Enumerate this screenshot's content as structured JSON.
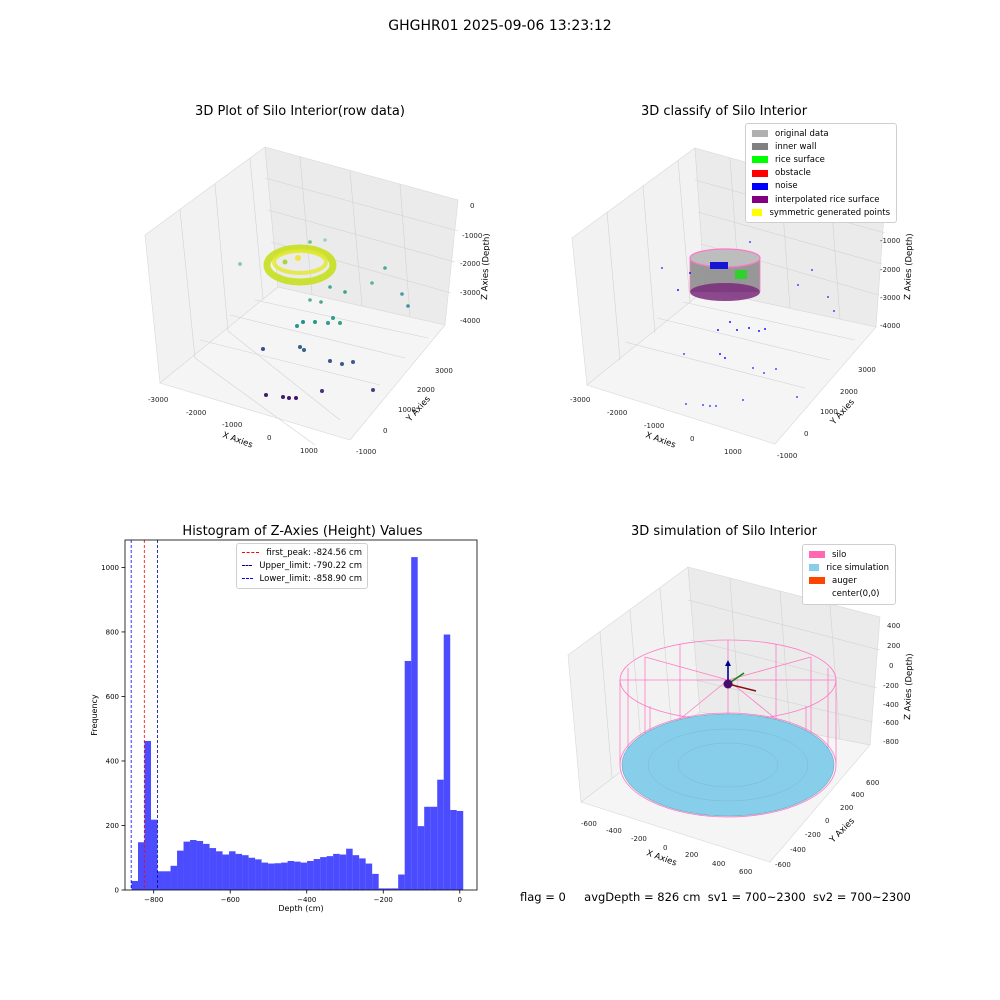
{
  "suptitle": "GHGHR01 2025-09-06 13:23:12",
  "panels": {
    "raw": {
      "title": "3D Plot of Silo Interior(row data)",
      "xlabel": "X Axies",
      "ylabel": "Y Axies",
      "zlabel": "Z Axies (Depth)",
      "xticks": [
        "-3000",
        "-2000",
        "-1000",
        "0",
        "1000"
      ],
      "yticks": [
        "-1000",
        "0",
        "1000",
        "2000",
        "3000"
      ],
      "zticks": [
        "0",
        "-1000",
        "-2000",
        "-3000",
        "-4000"
      ]
    },
    "classify": {
      "title": "3D classify of Silo Interior",
      "xlabel": "X Axies",
      "ylabel": "Y Axies",
      "zlabel": "Z Axies (Depth)",
      "xticks": [
        "-3000",
        "-2000",
        "-1000",
        "0",
        "1000"
      ],
      "yticks": [
        "-1000",
        "0",
        "1000",
        "2000",
        "3000"
      ],
      "zticks": [
        "0",
        "-1000",
        "-2000",
        "-3000",
        "-4000"
      ],
      "legend": [
        {
          "label": "original data",
          "color": "#b0b0b0"
        },
        {
          "label": "inner wall",
          "color": "#808080"
        },
        {
          "label": "rice surface",
          "color": "#00ff00"
        },
        {
          "label": "obstacle",
          "color": "#ff0000"
        },
        {
          "label": "noise",
          "color": "#0000ff"
        },
        {
          "label": "interpolated rice surface",
          "color": "#800080"
        },
        {
          "label": "symmetric generated points",
          "color": "#ffff00"
        }
      ]
    },
    "simulation": {
      "title": "3D simulation of Silo Interior",
      "xlabel": "X Axies",
      "ylabel": "Y Axies",
      "zlabel": "Z Axies (Depth)",
      "xticks": [
        "-600",
        "-400",
        "-200",
        "0",
        "200",
        "400",
        "600"
      ],
      "yticks": [
        "-600",
        "-400",
        "-200",
        "0",
        "200",
        "400",
        "600"
      ],
      "zticks": [
        "400",
        "200",
        "0",
        "-200",
        "-400",
        "-600",
        "-800"
      ],
      "legend": [
        {
          "label": "silo",
          "color": "#ff69b4"
        },
        {
          "label": "rice simulation",
          "color": "#87ceeb"
        },
        {
          "label": "auger",
          "color": "#ff4500"
        },
        {
          "label": "center(0,0)",
          "color": "#ffffff"
        }
      ]
    }
  },
  "footer": {
    "flag": "flag = 0",
    "avg": "avgDepth = 826 cm",
    "sv1": "sv1 = 700~2300",
    "sv2": "sv2 = 700~2300"
  },
  "chart_data": [
    {
      "type": "bar",
      "title": "Histogram of Z-Axies (Height) Values",
      "xlabel": "Depth (cm)",
      "ylabel": "Frequency",
      "xlim": [
        -875,
        45
      ],
      "ylim": [
        0,
        1085
      ],
      "xticks": [
        -800,
        -600,
        -400,
        -200,
        0
      ],
      "yticks": [
        0,
        200,
        400,
        600,
        800,
        1000
      ],
      "bin_width": 17,
      "bins_left": [
        -858,
        -841,
        -824,
        -807,
        -790,
        -773,
        -756,
        -739,
        -722,
        -705,
        -688,
        -671,
        -654,
        -637,
        -620,
        -603,
        -586,
        -569,
        -552,
        -535,
        -518,
        -501,
        -484,
        -467,
        -450,
        -433,
        -416,
        -399,
        -382,
        -365,
        -348,
        -331,
        -314,
        -297,
        -280,
        -263,
        -246,
        -229,
        -212,
        -195,
        -178,
        -161,
        -144,
        -127,
        -110,
        -93,
        -76,
        -59,
        -42,
        -25,
        -8
      ],
      "values": [
        28,
        148,
        462,
        218,
        58,
        58,
        75,
        122,
        150,
        155,
        152,
        143,
        130,
        120,
        110,
        120,
        112,
        108,
        100,
        95,
        85,
        82,
        83,
        85,
        90,
        88,
        85,
        90,
        96,
        102,
        105,
        112,
        110,
        128,
        108,
        98,
        82,
        50,
        5,
        5,
        5,
        48,
        710,
        1032,
        198,
        258,
        258,
        342,
        792,
        248,
        245
      ],
      "color": "#0000ff",
      "vlines": [
        {
          "label": "first_peak: -824.56 cm",
          "x": -824.56,
          "color": "#ff0000"
        },
        {
          "label": "Upper_limit: -790.22 cm",
          "x": -790.22,
          "color": "#00008b"
        },
        {
          "label": "Lower_limit: -858.90 cm",
          "x": -858.9,
          "color": "#0000ff"
        }
      ],
      "legend": "top-center"
    }
  ]
}
